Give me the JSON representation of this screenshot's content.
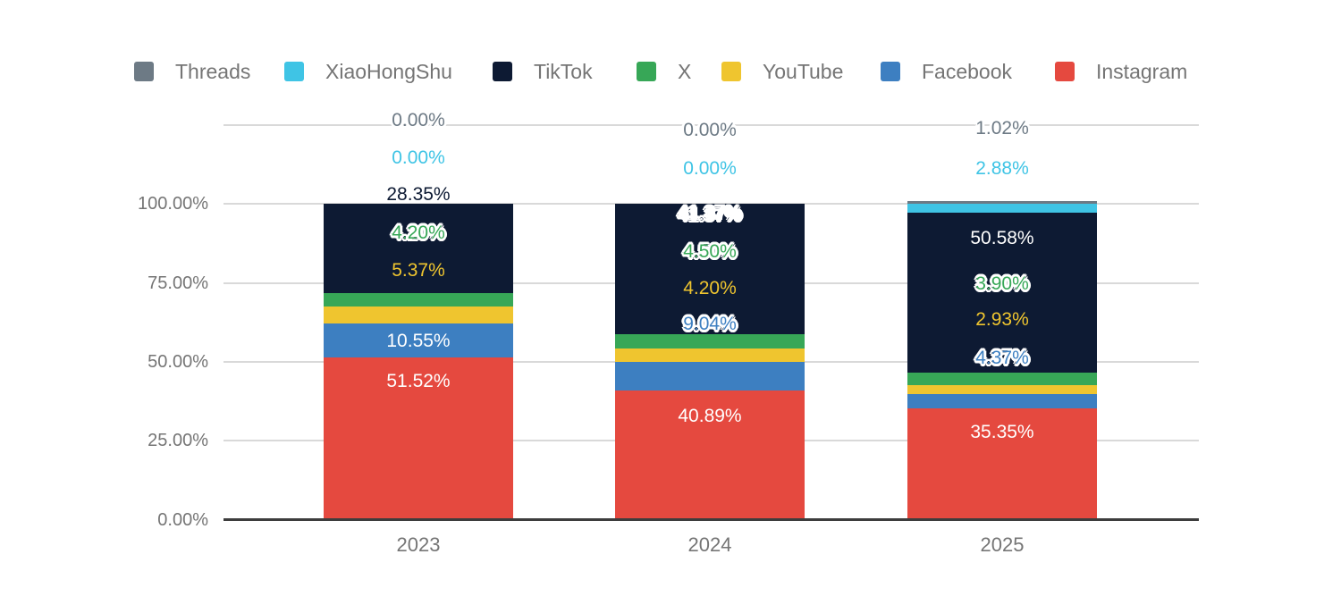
{
  "chart_data": {
    "type": "bar",
    "stacked": true,
    "title": "",
    "categories": [
      "2023",
      "2024",
      "2025"
    ],
    "series": [
      {
        "name": "Threads",
        "color": "#6d7a85",
        "values": [
          0.0,
          0.0,
          1.02
        ]
      },
      {
        "name": "XiaoHongShu",
        "color": "#3fc4e5",
        "values": [
          0.0,
          0.0,
          2.88
        ]
      },
      {
        "name": "TikTok",
        "color": "#0d1a33",
        "values": [
          28.35,
          41.37,
          50.58
        ]
      },
      {
        "name": "X",
        "color": "#37a757",
        "values": [
          4.2,
          4.5,
          3.9
        ]
      },
      {
        "name": "YouTube",
        "color": "#efc52f",
        "values": [
          5.37,
          4.2,
          2.93
        ]
      },
      {
        "name": "Facebook",
        "color": "#3d7fc1",
        "values": [
          10.55,
          9.04,
          4.37
        ]
      },
      {
        "name": "Instagram",
        "color": "#e5493f",
        "values": [
          51.52,
          40.89,
          35.35
        ]
      }
    ],
    "data_labels_visible": true,
    "data_label_format": "0.00%",
    "y_axis": {
      "tick_labels": [
        "0.00%",
        "25.00%",
        "50.00%",
        "75.00%",
        "100.00%"
      ],
      "tick_values": [
        0,
        25,
        50,
        75,
        100
      ],
      "ylim": [
        0,
        125
      ],
      "grid": true
    },
    "x_axis": {
      "labels": [
        "2023",
        "2024",
        "2025"
      ]
    },
    "legend": {
      "position": "top"
    }
  },
  "colors": {
    "axis_text": "#757575",
    "legend_text": "#757575",
    "gridline": "#d9d9d9",
    "baseline": "#3d3d3d",
    "background": "#ffffff"
  }
}
